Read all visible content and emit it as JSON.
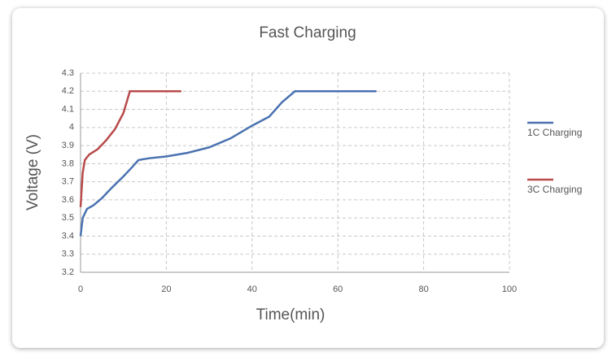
{
  "chart_data": {
    "type": "line",
    "title": "Fast Charging",
    "x_label": "Time(min)",
    "y_label": "Voltage (V)",
    "xlim": [
      0,
      100
    ],
    "xticks": [
      0,
      20,
      40,
      60,
      80,
      100
    ],
    "ylim": [
      3.2,
      4.3
    ],
    "yticks": [
      3.2,
      3.3,
      3.4,
      3.5,
      3.6,
      3.7,
      3.8,
      3.9,
      4,
      4.1,
      4.2,
      4.3
    ],
    "grid": true,
    "legend": "right",
    "series": [
      {
        "name": "1C Charging",
        "color": "#4a72b0",
        "x": [
          0,
          0.5,
          1.5,
          3,
          5,
          7,
          10,
          12,
          13.5,
          16,
          20,
          25,
          30,
          35,
          40,
          44,
          47,
          50,
          55,
          60,
          69
        ],
        "values": [
          3.4,
          3.5,
          3.55,
          3.57,
          3.61,
          3.66,
          3.73,
          3.78,
          3.82,
          3.83,
          3.84,
          3.86,
          3.89,
          3.94,
          4.01,
          4.06,
          4.14,
          4.2,
          4.2,
          4.2,
          4.2
        ]
      },
      {
        "name": "3C Charging",
        "color": "#b94a4a",
        "x": [
          0,
          0.5,
          1,
          2,
          4,
          6,
          8,
          10,
          11.5,
          16,
          23.5
        ],
        "values": [
          3.56,
          3.75,
          3.82,
          3.85,
          3.88,
          3.93,
          3.99,
          4.08,
          4.2,
          4.2,
          4.2
        ]
      }
    ]
  }
}
